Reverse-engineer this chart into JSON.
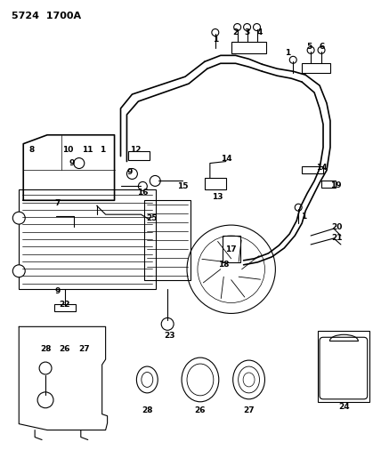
{
  "title": "5724  1700A",
  "bg_color": "#ffffff",
  "line_color": "#000000",
  "fig_width": 4.28,
  "fig_height": 5.33,
  "dpi": 100
}
